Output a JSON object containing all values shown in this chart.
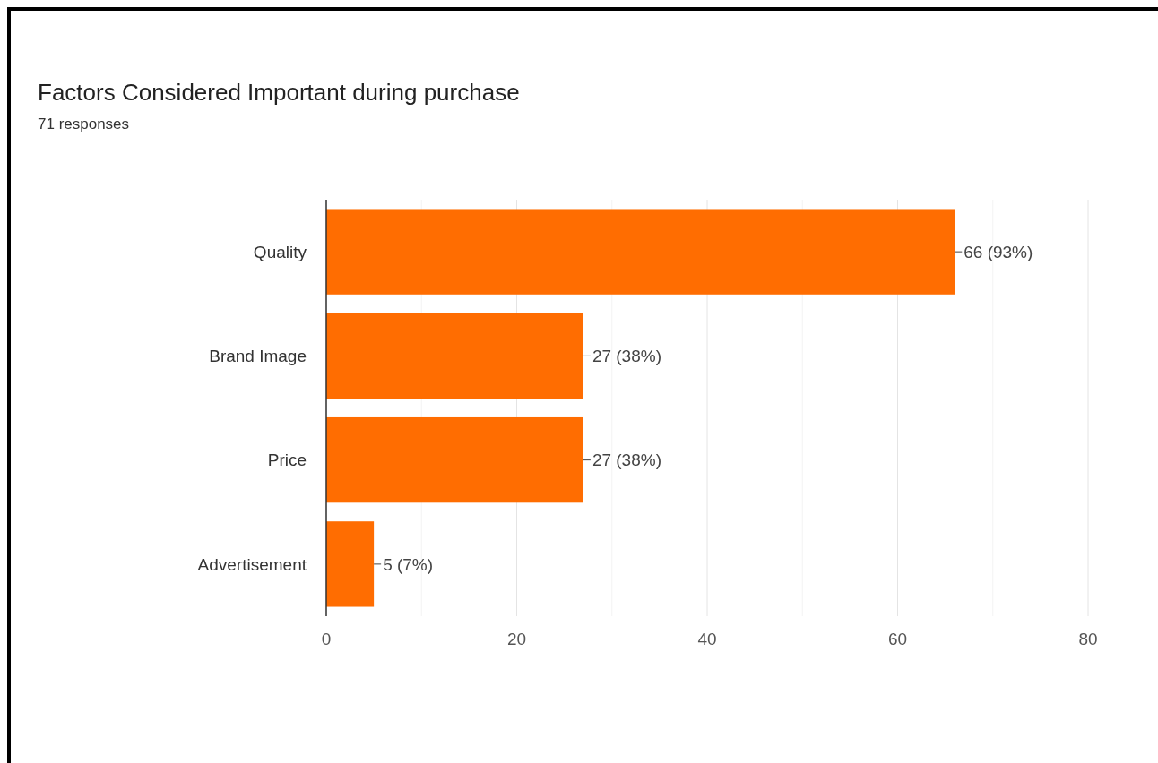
{
  "chart_data": {
    "type": "bar",
    "orientation": "horizontal",
    "title": "Factors Considered Important during purchase",
    "subtitle": "71 responses",
    "categories": [
      "Quality",
      "Brand Image",
      "Price",
      "Advertisement"
    ],
    "values": [
      66,
      27,
      27,
      5
    ],
    "value_labels": [
      "66 (93%)",
      "27 (38%)",
      "27 (38%)",
      "5 (7%)"
    ],
    "color": "#ff6d01",
    "xlim": [
      0,
      80
    ],
    "xticks": [
      0,
      {
        "value": 10,
        "label": null
      },
      20,
      {
        "value": 30,
        "label": null
      },
      40,
      {
        "value": 50,
        "label": null
      },
      60,
      {
        "value": 70,
        "label": null
      },
      80
    ],
    "grid": "x"
  }
}
